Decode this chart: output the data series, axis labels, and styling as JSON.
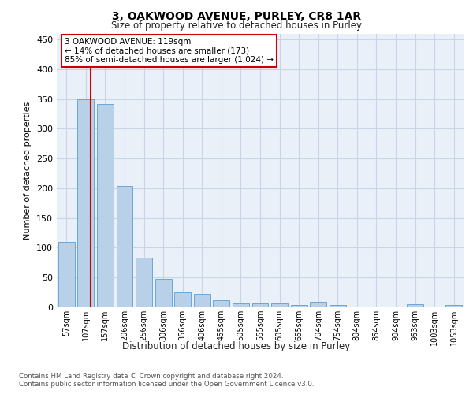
{
  "title_line1": "3, OAKWOOD AVENUE, PURLEY, CR8 1AR",
  "title_line2": "Size of property relative to detached houses in Purley",
  "xlabel": "Distribution of detached houses by size in Purley",
  "ylabel": "Number of detached properties",
  "categories": [
    "57sqm",
    "107sqm",
    "157sqm",
    "206sqm",
    "256sqm",
    "306sqm",
    "356sqm",
    "406sqm",
    "455sqm",
    "505sqm",
    "555sqm",
    "605sqm",
    "655sqm",
    "704sqm",
    "754sqm",
    "804sqm",
    "854sqm",
    "904sqm",
    "953sqm",
    "1003sqm",
    "1053sqm"
  ],
  "values": [
    110,
    350,
    342,
    204,
    84,
    47,
    25,
    23,
    12,
    7,
    6,
    6,
    4,
    9,
    4,
    0,
    0,
    0,
    5,
    0,
    4
  ],
  "bar_color": "#b8d0e8",
  "bar_edge_color": "#5a9fd4",
  "annotation_text": "3 OAKWOOD AVENUE: 119sqm\n← 14% of detached houses are smaller (173)\n85% of semi-detached houses are larger (1,024) →",
  "annotation_box_color": "#ffffff",
  "annotation_box_edge": "#cc0000",
  "red_line_color": "#cc0000",
  "grid_color": "#c8d4e8",
  "background_color": "#eaf0f8",
  "footer_line1": "Contains HM Land Registry data © Crown copyright and database right 2024.",
  "footer_line2": "Contains public sector information licensed under the Open Government Licence v3.0.",
  "ylim": [
    0,
    460
  ],
  "yticks": [
    0,
    50,
    100,
    150,
    200,
    250,
    300,
    350,
    400,
    450
  ],
  "prop_sqm": 119,
  "bin_start_sqm": [
    57,
    107,
    157,
    206,
    256,
    306,
    356,
    406,
    455,
    505,
    555,
    605,
    655,
    704,
    754,
    804,
    854,
    904,
    953,
    1003,
    1053
  ]
}
